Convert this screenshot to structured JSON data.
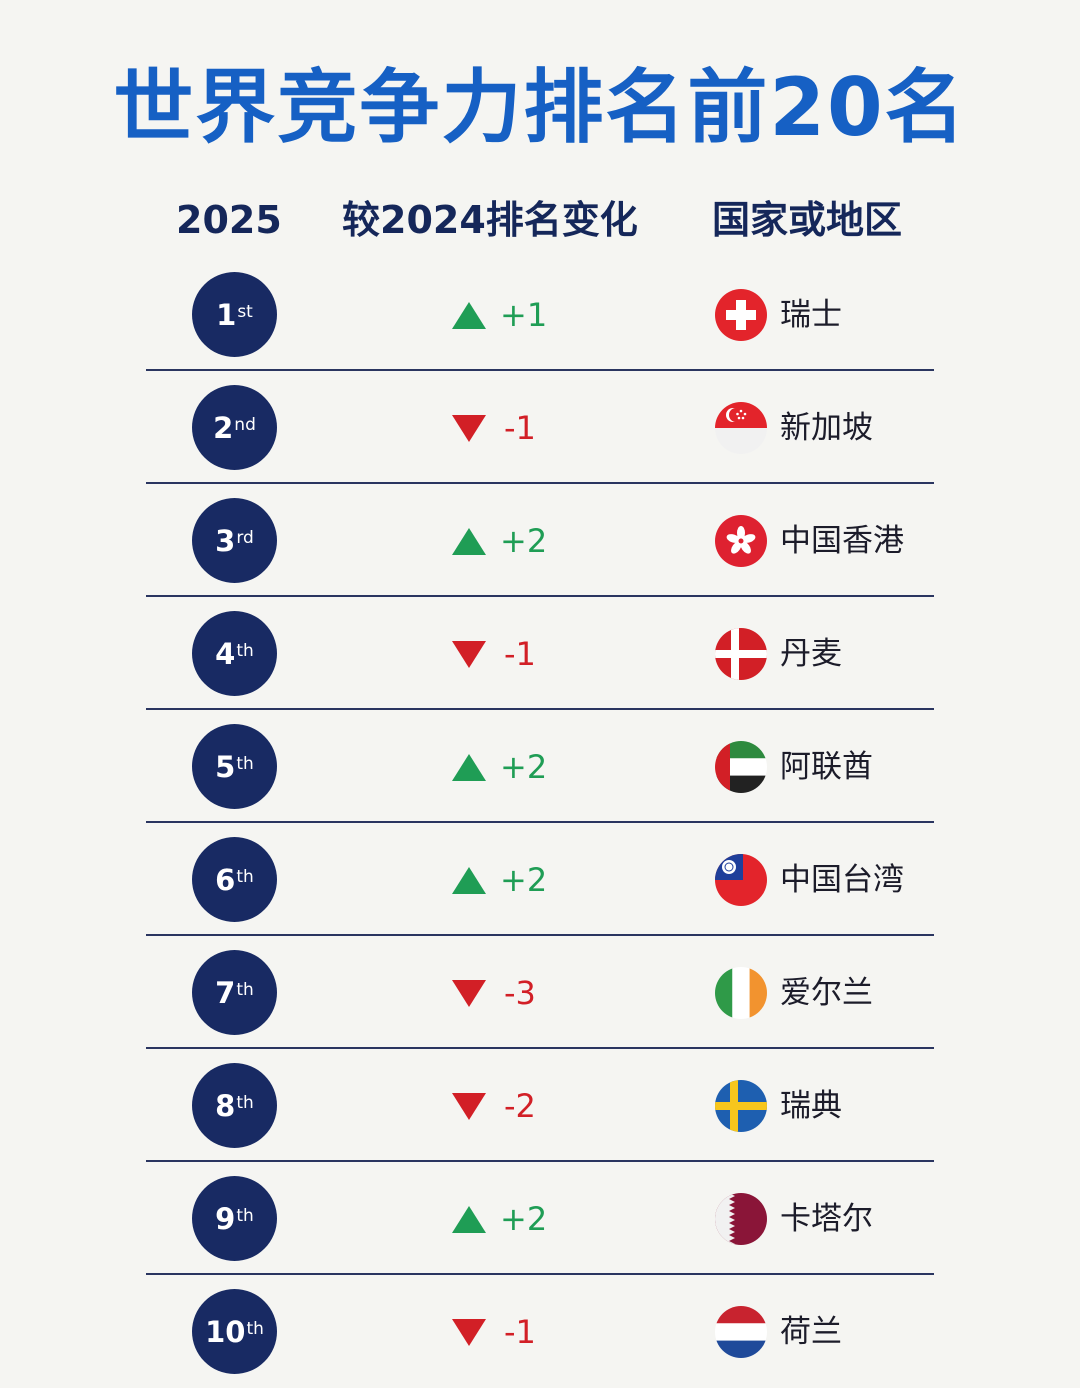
{
  "title": "世界竞争力排名前20名",
  "headers": {
    "rank": "2025",
    "change": "较2024排名变化",
    "country": "国家或地区"
  },
  "colors": {
    "title": "#1660c4",
    "badge": "#182a63",
    "up": "#1f9d55",
    "down": "#d21f26"
  },
  "rows": [
    {
      "rank": "1",
      "suffix": "st",
      "direction": "up",
      "change": "+1",
      "country": "瑞士",
      "flag": "switzerland-flag-icon"
    },
    {
      "rank": "2",
      "suffix": "nd",
      "direction": "down",
      "change": "-1",
      "country": "新加坡",
      "flag": "singapore-flag-icon"
    },
    {
      "rank": "3",
      "suffix": "rd",
      "direction": "up",
      "change": "+2",
      "country": "中国香港",
      "flag": "hong-kong-flag-icon"
    },
    {
      "rank": "4",
      "suffix": "th",
      "direction": "down",
      "change": "-1",
      "country": "丹麦",
      "flag": "denmark-flag-icon"
    },
    {
      "rank": "5",
      "suffix": "th",
      "direction": "up",
      "change": "+2",
      "country": "阿联酋",
      "flag": "uae-flag-icon"
    },
    {
      "rank": "6",
      "suffix": "th",
      "direction": "up",
      "change": "+2",
      "country": "中国台湾",
      "flag": "taiwan-flag-icon"
    },
    {
      "rank": "7",
      "suffix": "th",
      "direction": "down",
      "change": "-3",
      "country": "爱尔兰",
      "flag": "ireland-flag-icon"
    },
    {
      "rank": "8",
      "suffix": "th",
      "direction": "down",
      "change": "-2",
      "country": "瑞典",
      "flag": "sweden-flag-icon"
    },
    {
      "rank": "9",
      "suffix": "th",
      "direction": "up",
      "change": "+2",
      "country": "卡塔尔",
      "flag": "qatar-flag-icon"
    },
    {
      "rank": "10",
      "suffix": "th",
      "direction": "down",
      "change": "-1",
      "country": "荷兰",
      "flag": "netherlands-flag-icon"
    }
  ]
}
